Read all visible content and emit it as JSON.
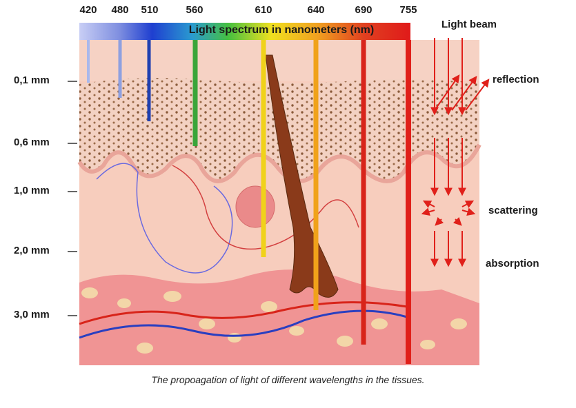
{
  "spectrum": {
    "title": "Light spectrum in nanometers (nm)",
    "wavelengths": [
      "420",
      "480",
      "510",
      "560",
      "610",
      "640",
      "690",
      "755"
    ]
  },
  "depths": [
    "0,1 mm",
    "0,6 mm",
    "1,0 mm",
    "2,0 mm",
    "3,0 mm"
  ],
  "labels": {
    "light_beam": "Light beam",
    "reflection": "reflection",
    "scattering": "scattering",
    "absorption": "absorption"
  },
  "caption": "The propoagation of light of different wavelengths in the tissues.",
  "colors": {
    "420": "#a9b8ec",
    "480": "#8ea0e0",
    "510": "#1f3fb0",
    "560": "#3aa53a",
    "610": "#f0d21a",
    "640": "#f0a21a",
    "690": "#d8241a",
    "755": "#e0201a",
    "skin": "#f6c8b6",
    "epidermis": "#f1bfae",
    "deep_layer": "#f08c8c",
    "arrows": "#e0201a"
  }
}
